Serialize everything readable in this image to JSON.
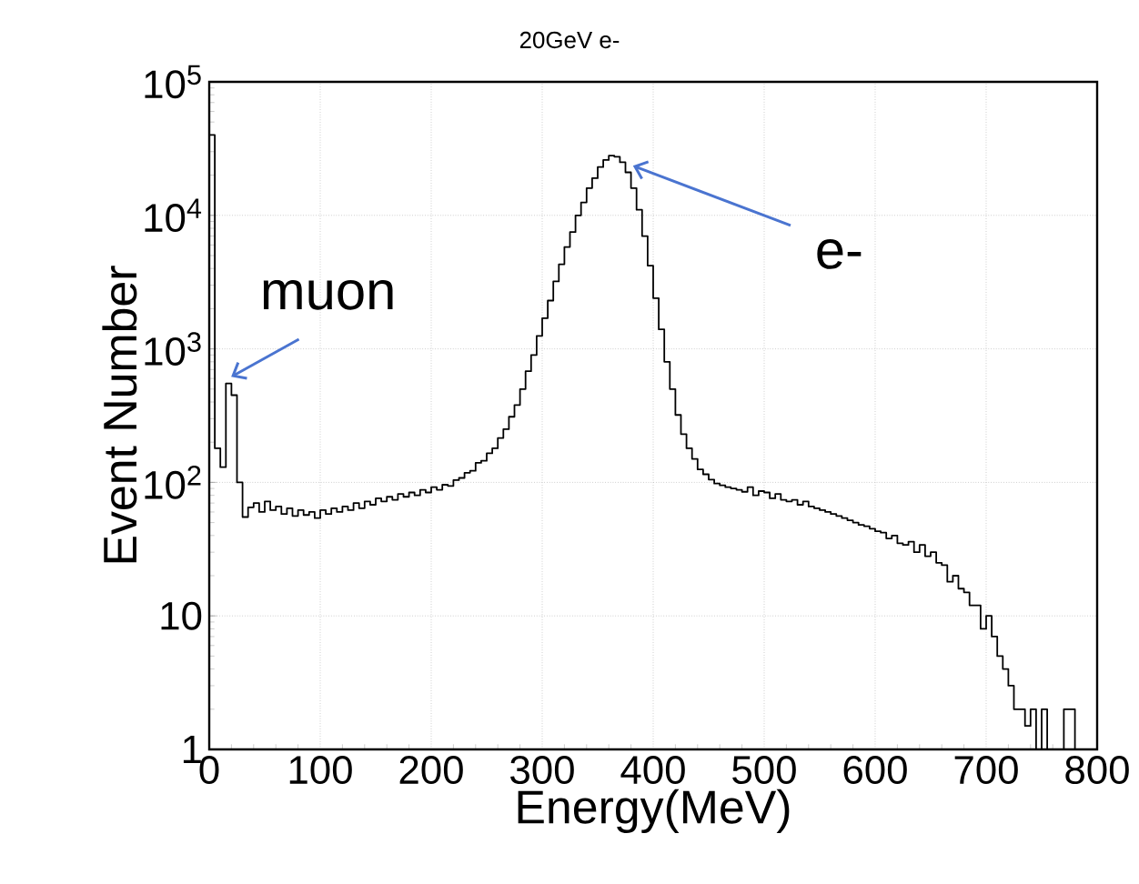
{
  "chart_data": {
    "type": "histogram",
    "title": "20GeV e-",
    "xlabel": "Energy(MeV)",
    "ylabel": "Event Number",
    "color": "#000000",
    "bins": [
      0,
      5,
      10,
      15,
      20,
      25,
      30,
      35,
      40,
      45,
      50,
      55,
      60,
      65,
      70,
      75,
      80,
      85,
      90,
      95,
      100,
      105,
      110,
      115,
      120,
      125,
      130,
      135,
      140,
      145,
      150,
      155,
      160,
      165,
      170,
      175,
      180,
      185,
      190,
      195,
      200,
      205,
      210,
      215,
      220,
      225,
      230,
      235,
      240,
      245,
      250,
      255,
      260,
      265,
      270,
      275,
      280,
      285,
      290,
      295,
      300,
      305,
      310,
      315,
      320,
      325,
      330,
      335,
      340,
      345,
      350,
      355,
      360,
      365,
      370,
      375,
      380,
      385,
      390,
      395,
      400,
      405,
      410,
      415,
      420,
      425,
      430,
      435,
      440,
      445,
      450,
      455,
      460,
      465,
      470,
      475,
      480,
      485,
      490,
      495,
      500,
      505,
      510,
      515,
      520,
      525,
      530,
      535,
      540,
      545,
      550,
      555,
      560,
      565,
      570,
      575,
      580,
      585,
      590,
      595,
      600,
      605,
      610,
      615,
      620,
      625,
      630,
      635,
      640,
      645,
      650,
      655,
      660,
      665,
      670,
      675,
      680,
      685,
      690,
      695,
      700,
      705,
      710,
      715,
      720,
      725,
      730,
      735,
      740,
      745,
      750,
      755,
      760,
      765,
      770,
      775,
      780
    ],
    "values": [
      40000,
      180,
      130,
      550,
      450,
      100,
      55,
      65,
      70,
      60,
      72,
      62,
      66,
      58,
      64,
      56,
      62,
      57,
      60,
      54,
      62,
      58,
      64,
      60,
      66,
      62,
      70,
      64,
      72,
      68,
      76,
      72,
      78,
      74,
      82,
      78,
      84,
      80,
      88,
      84,
      92,
      88,
      96,
      94,
      104,
      108,
      118,
      122,
      140,
      145,
      165,
      180,
      215,
      250,
      310,
      380,
      500,
      680,
      900,
      1250,
      1700,
      2300,
      3200,
      4300,
      5800,
      7500,
      10000,
      12500,
      16000,
      19000,
      23000,
      26000,
      28000,
      27500,
      25000,
      21000,
      16000,
      11000,
      7000,
      4200,
      2400,
      1400,
      800,
      500,
      320,
      230,
      180,
      150,
      125,
      115,
      105,
      98,
      95,
      92,
      90,
      88,
      85,
      92,
      80,
      86,
      84,
      76,
      82,
      74,
      72,
      74,
      68,
      72,
      66,
      64,
      62,
      60,
      58,
      56,
      54,
      52,
      50,
      48,
      47,
      45,
      43,
      42,
      38,
      40,
      35,
      34,
      36,
      30,
      34,
      28,
      30,
      25,
      24,
      18,
      20,
      16,
      15,
      12,
      12,
      8,
      10,
      7,
      5,
      4,
      3,
      2,
      2,
      1.5,
      2,
      null,
      2,
      null,
      null,
      null,
      2,
      2
    ],
    "xlim": [
      0,
      800
    ],
    "ylim": [
      1,
      100000
    ],
    "log": "y",
    "grid": true,
    "xticks": [
      0,
      100,
      200,
      300,
      400,
      500,
      600,
      700,
      800
    ],
    "yticks": [
      1,
      10,
      {
        "value": 100,
        "label": "10$^{2}$"
      },
      {
        "value": 1000,
        "label": "10$^{3}$"
      },
      {
        "value": 10000,
        "label": "10$^{4}$"
      },
      {
        "value": 100000,
        "label": "10$^{5}$"
      }
    ],
    "annotations": [
      {
        "text": "muon",
        "x": 18,
        "y": 550
      },
      {
        "text": "e-",
        "x": 380,
        "y": 20000
      }
    ]
  }
}
